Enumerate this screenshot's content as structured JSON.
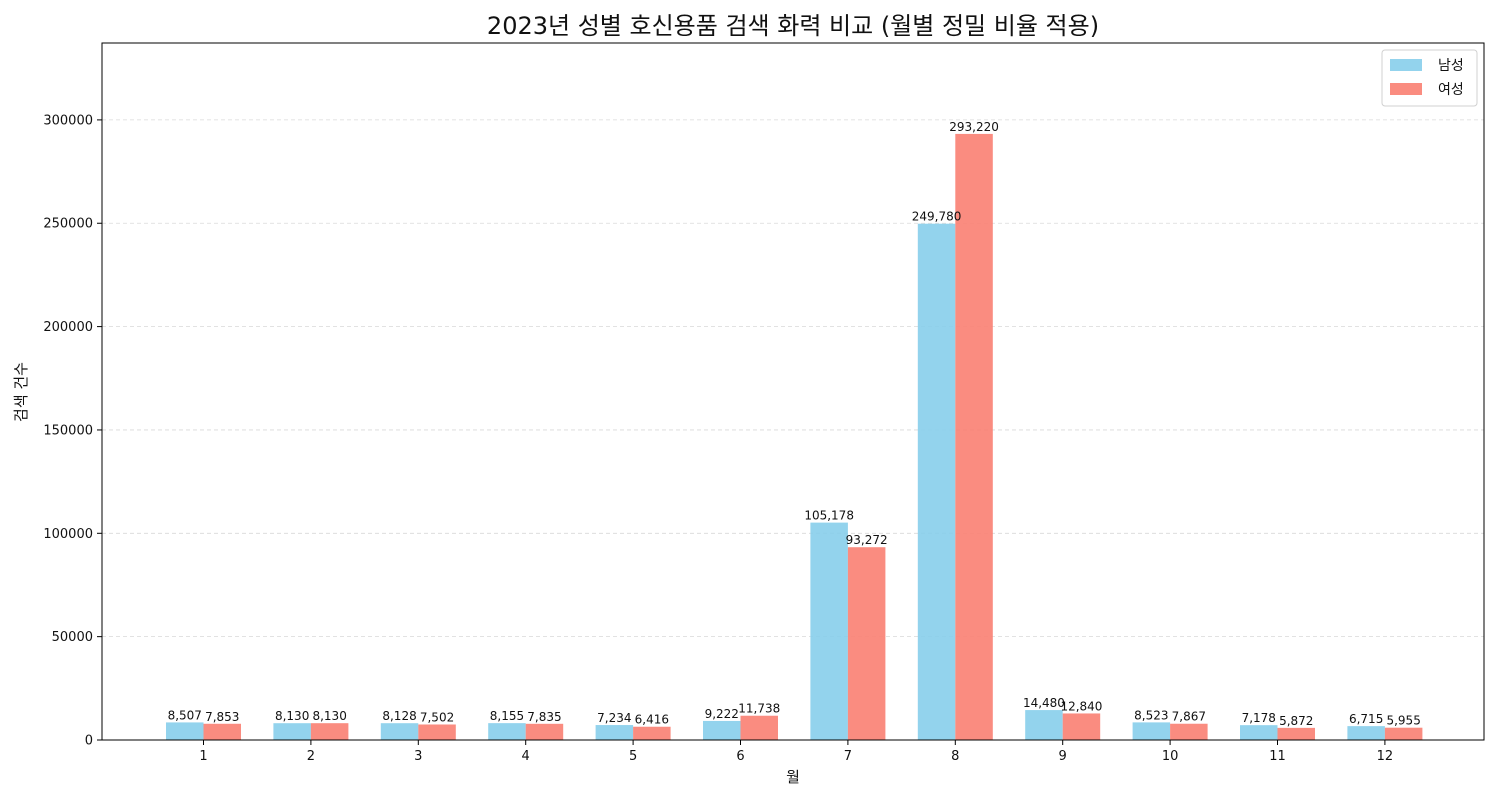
{
  "chart_data": {
    "type": "bar",
    "title": "2023년 성별 호신용품 검색 화력 비교 (월별 정밀 비율 적용)",
    "xlabel": "월",
    "ylabel": "검색 건수",
    "categories": [
      "1",
      "2",
      "3",
      "4",
      "5",
      "6",
      "7",
      "8",
      "9",
      "10",
      "11",
      "12"
    ],
    "series": [
      {
        "name": "남성",
        "color": "#87CEEB",
        "values": [
          8507,
          8130,
          8128,
          8155,
          7234,
          9222,
          105178,
          249780,
          14480,
          8523,
          7178,
          6715
        ],
        "labels": [
          "8,507",
          "8,130",
          "8,128",
          "8,155",
          "7,234",
          "9,222",
          "105,178",
          "249,780",
          "14,480",
          "8,523",
          "7,178",
          "6,715"
        ]
      },
      {
        "name": "여성",
        "color": "#FA8072",
        "values": [
          7853,
          8130,
          7502,
          7835,
          6416,
          11738,
          93272,
          293220,
          12840,
          7867,
          5872,
          5955
        ],
        "labels": [
          "7,853",
          "8,130",
          "7,502",
          "7,835",
          "6,416",
          "11,738",
          "93,272",
          "293,220",
          "12,840",
          "7,867",
          "5,872",
          "5,955"
        ]
      }
    ],
    "ylim": [
      0,
      337203
    ],
    "yticks": [
      0,
      50000,
      100000,
      150000,
      200000,
      250000,
      300000
    ],
    "ytick_labels": [
      "0",
      "50000",
      "100000",
      "150000",
      "200000",
      "250000",
      "300000"
    ],
    "grid": "horizontal dashed",
    "legend_position": "top-right"
  }
}
